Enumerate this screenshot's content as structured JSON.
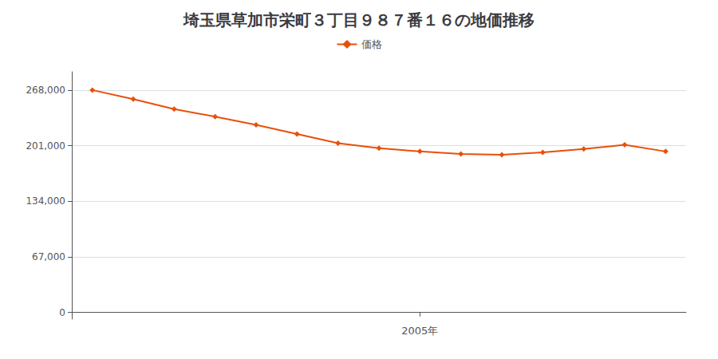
{
  "chart_data": {
    "type": "line",
    "title": "埼玉県草加市栄町３丁目９８７番１６の地価推移",
    "x": [
      1997,
      1998,
      1999,
      2000,
      2001,
      2002,
      2003,
      2004,
      2005,
      2006,
      2007,
      2008,
      2009,
      2010,
      2011
    ],
    "series": [
      {
        "name": "価格",
        "color": "#e8500a",
        "marker": "diamond",
        "values": [
          268000,
          257000,
          245000,
          236000,
          226000,
          215000,
          204000,
          198000,
          194000,
          191000,
          190000,
          193000,
          197000,
          202000,
          194000
        ]
      }
    ],
    "xlim": [
      1996.5,
      2011.5
    ],
    "xticks": [
      {
        "value": 2005,
        "label": "2005年"
      }
    ],
    "ylim": [
      -8000,
      290000
    ],
    "yticks": [
      0,
      {
        "value": 67000,
        "label": "67,000"
      },
      {
        "value": 134000,
        "label": "134,000"
      },
      {
        "value": 201000,
        "label": "201,000"
      },
      {
        "value": 268000,
        "label": "268,000"
      }
    ],
    "grid": true,
    "legend": "top"
  }
}
